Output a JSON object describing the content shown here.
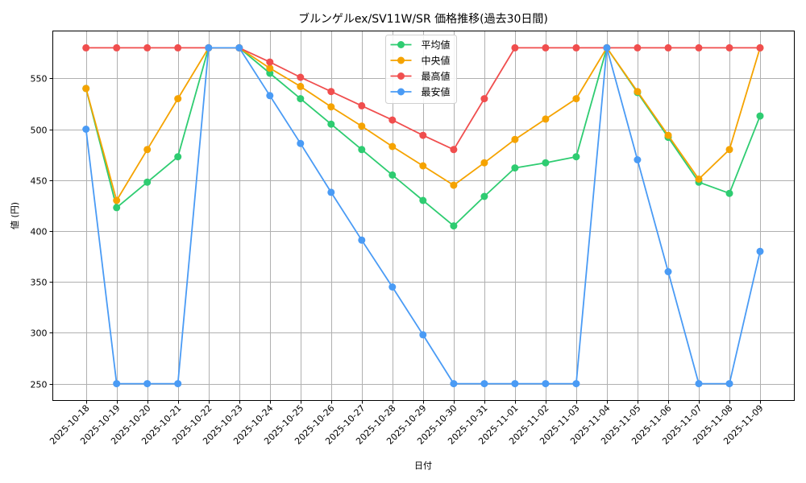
{
  "chart_data": {
    "type": "line",
    "title": "ブルンゲルex/SV11W/SR 価格推移(過去30日間)",
    "xlabel": "日付",
    "ylabel": "値 (円)",
    "x": [
      "2025-10-18",
      "2025-10-19",
      "2025-10-20",
      "2025-10-21",
      "2025-10-22",
      "2025-10-23",
      "2025-10-24",
      "2025-10-25",
      "2025-10-26",
      "2025-10-27",
      "2025-10-28",
      "2025-10-29",
      "2025-10-30",
      "2025-10-31",
      "2025-11-01",
      "2025-11-02",
      "2025-11-03",
      "2025-11-04",
      "2025-11-05",
      "2025-11-06",
      "2025-11-07",
      "2025-11-08",
      "2025-11-09"
    ],
    "yticks": [
      250,
      300,
      350,
      400,
      450,
      500,
      550
    ],
    "ylim": [
      233.5,
      596.5
    ],
    "grid": true,
    "legend_position": "upper center",
    "series": [
      {
        "name": "平均値",
        "color": "#2ecc71",
        "values": [
          540,
          423,
          448,
          473,
          580,
          580,
          555,
          530,
          505,
          480,
          455,
          430,
          405,
          434,
          462,
          467,
          473,
          580,
          536,
          492,
          448,
          437,
          513
        ]
      },
      {
        "name": "中央値",
        "color": "#f5a300",
        "values": [
          540,
          430,
          480,
          530,
          580,
          580,
          560,
          542,
          522,
          503,
          483,
          464,
          445,
          467,
          490,
          510,
          530,
          580,
          537,
          494,
          451,
          480,
          580
        ]
      },
      {
        "name": "最高値",
        "color": "#f04e4e",
        "values": [
          580,
          580,
          580,
          580,
          580,
          580,
          566,
          551,
          537,
          523,
          509,
          494,
          480,
          530,
          580,
          580,
          580,
          580,
          580,
          580,
          580,
          580,
          580
        ]
      },
      {
        "name": "最安値",
        "color": "#4a9bf5",
        "values": [
          500,
          250,
          250,
          250,
          580,
          580,
          533,
          486,
          438,
          391,
          345,
          298,
          250,
          250,
          250,
          250,
          250,
          580,
          470,
          360,
          250,
          250,
          380
        ]
      }
    ]
  }
}
